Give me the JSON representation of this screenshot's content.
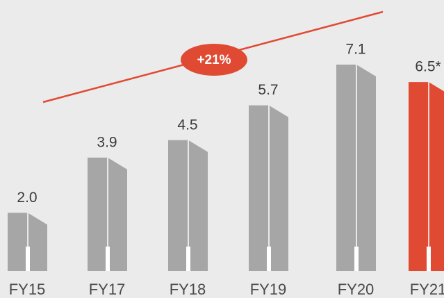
{
  "chart_data": {
    "type": "bar",
    "categories": [
      "FY15",
      "FY17",
      "FY18",
      "FY19",
      "FY20",
      "FY21"
    ],
    "values": [
      2.0,
      3.9,
      4.5,
      5.7,
      7.1,
      6.5
    ],
    "value_labels": [
      "2.0",
      "3.9",
      "4.5",
      "5.7",
      "7.1",
      "6.5*"
    ],
    "colors": [
      "#a6a6a6",
      "#a6a6a6",
      "#a6a6a6",
      "#a6a6a6",
      "#a6a6a6",
      "#e04a33"
    ],
    "annotation": "+21%"
  }
}
